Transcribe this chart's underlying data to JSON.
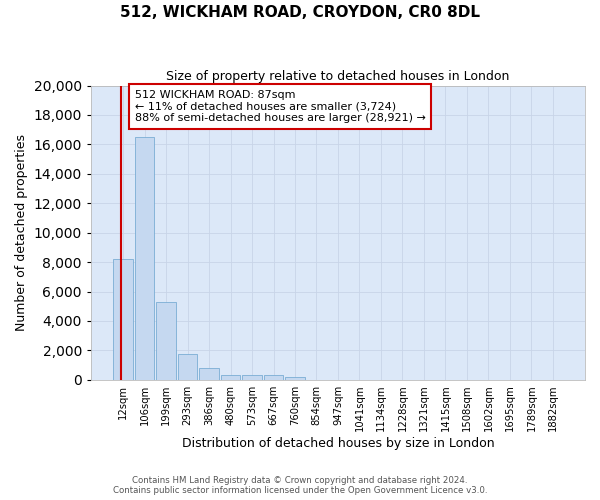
{
  "title": "512, WICKHAM ROAD, CROYDON, CR0 8DL",
  "subtitle": "Size of property relative to detached houses in London",
  "xlabel": "Distribution of detached houses by size in London",
  "ylabel": "Number of detached properties",
  "categories": [
    "12sqm",
    "106sqm",
    "199sqm",
    "293sqm",
    "386sqm",
    "480sqm",
    "573sqm",
    "667sqm",
    "760sqm",
    "854sqm",
    "947sqm",
    "1041sqm",
    "1134sqm",
    "1228sqm",
    "1321sqm",
    "1415sqm",
    "1508sqm",
    "1602sqm",
    "1695sqm",
    "1789sqm",
    "1882sqm"
  ],
  "values": [
    8200,
    16500,
    5300,
    1750,
    800,
    350,
    300,
    300,
    175,
    0,
    0,
    0,
    0,
    0,
    0,
    0,
    0,
    0,
    0,
    0,
    0
  ],
  "bar_color": "#c5d8f0",
  "bar_edge_color": "#7aadd4",
  "annotation_text_line1": "512 WICKHAM ROAD: 87sqm",
  "annotation_text_line2": "← 11% of detached houses are smaller (3,724)",
  "annotation_text_line3": "88% of semi-detached houses are larger (28,921) →",
  "annotation_box_facecolor": "#ffffff",
  "annotation_box_edgecolor": "#cc0000",
  "vline_color": "#cc0000",
  "ylim": [
    0,
    20000
  ],
  "yticks": [
    0,
    2000,
    4000,
    6000,
    8000,
    10000,
    12000,
    14000,
    16000,
    18000,
    20000
  ],
  "grid_color": "#c8d4e8",
  "plot_bg_color": "#dce8f8",
  "fig_bg_color": "#ffffff",
  "footer_line1": "Contains HM Land Registry data © Crown copyright and database right 2024.",
  "footer_line2": "Contains public sector information licensed under the Open Government Licence v3.0."
}
